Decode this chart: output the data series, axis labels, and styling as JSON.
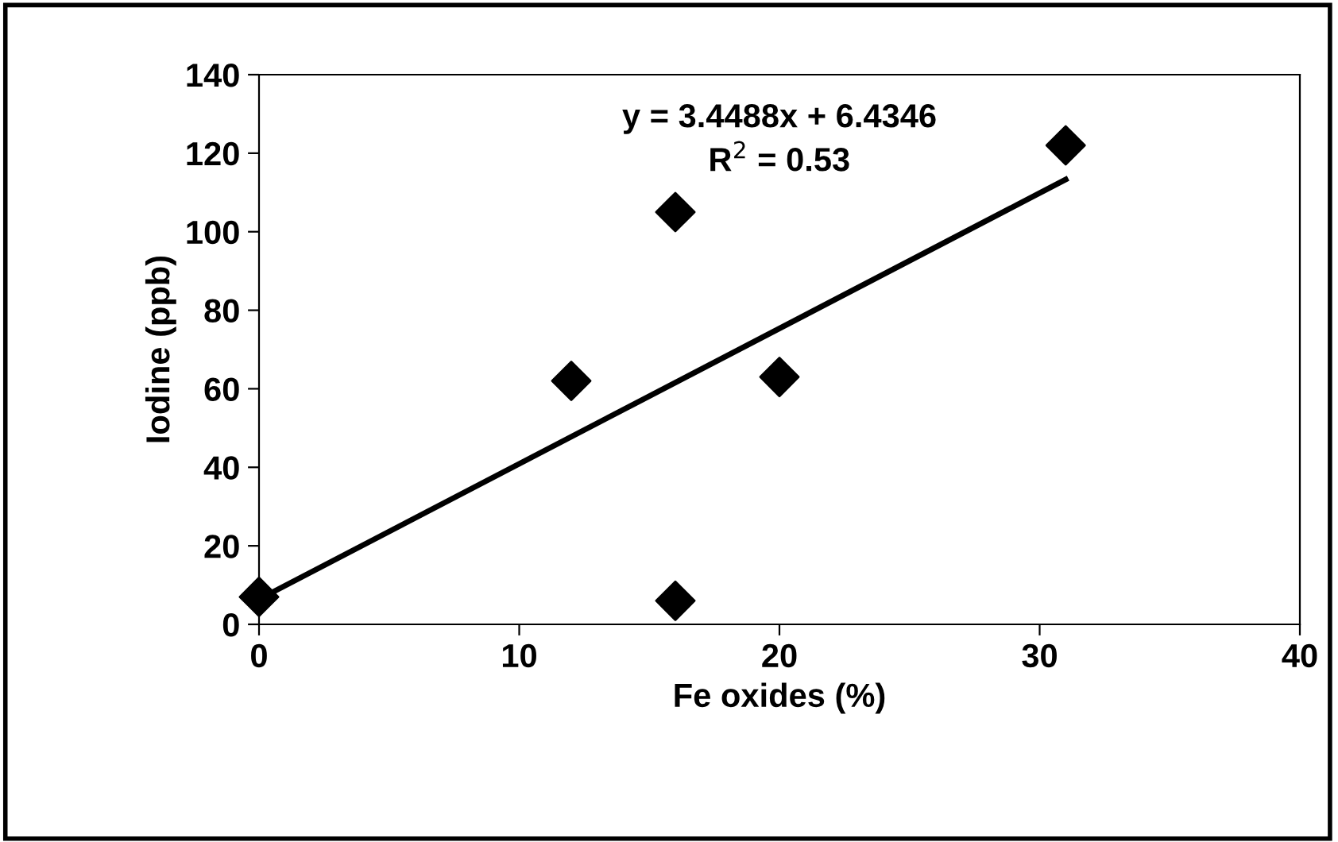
{
  "chart_data": {
    "type": "scatter",
    "xlabel": "Fe oxides (%)",
    "ylabel": "Iodine (ppb)",
    "xlim": [
      0,
      40
    ],
    "xticks": [
      0,
      10,
      20,
      30,
      40
    ],
    "ylim": [
      0,
      140
    ],
    "yticks": [
      0,
      20,
      40,
      60,
      80,
      100,
      120,
      140
    ],
    "grid": false,
    "legend": false,
    "marker": "diamond",
    "series": [
      {
        "color": "#000000",
        "x": [
          0,
          12,
          16,
          16,
          20,
          31
        ],
        "values": [
          7,
          62,
          105,
          6,
          63,
          122
        ]
      },
      {
        "type": "line",
        "color": "#000000",
        "line_style": "solid",
        "marker": "none",
        "x": [
          0,
          31
        ],
        "values": [
          6.4,
          113.3
        ]
      }
    ],
    "annotations": [
      {
        "text": "y = 3.4488x + 6.4346"
      },
      {
        "text": "R$^{2}$ = 0.53"
      }
    ]
  }
}
